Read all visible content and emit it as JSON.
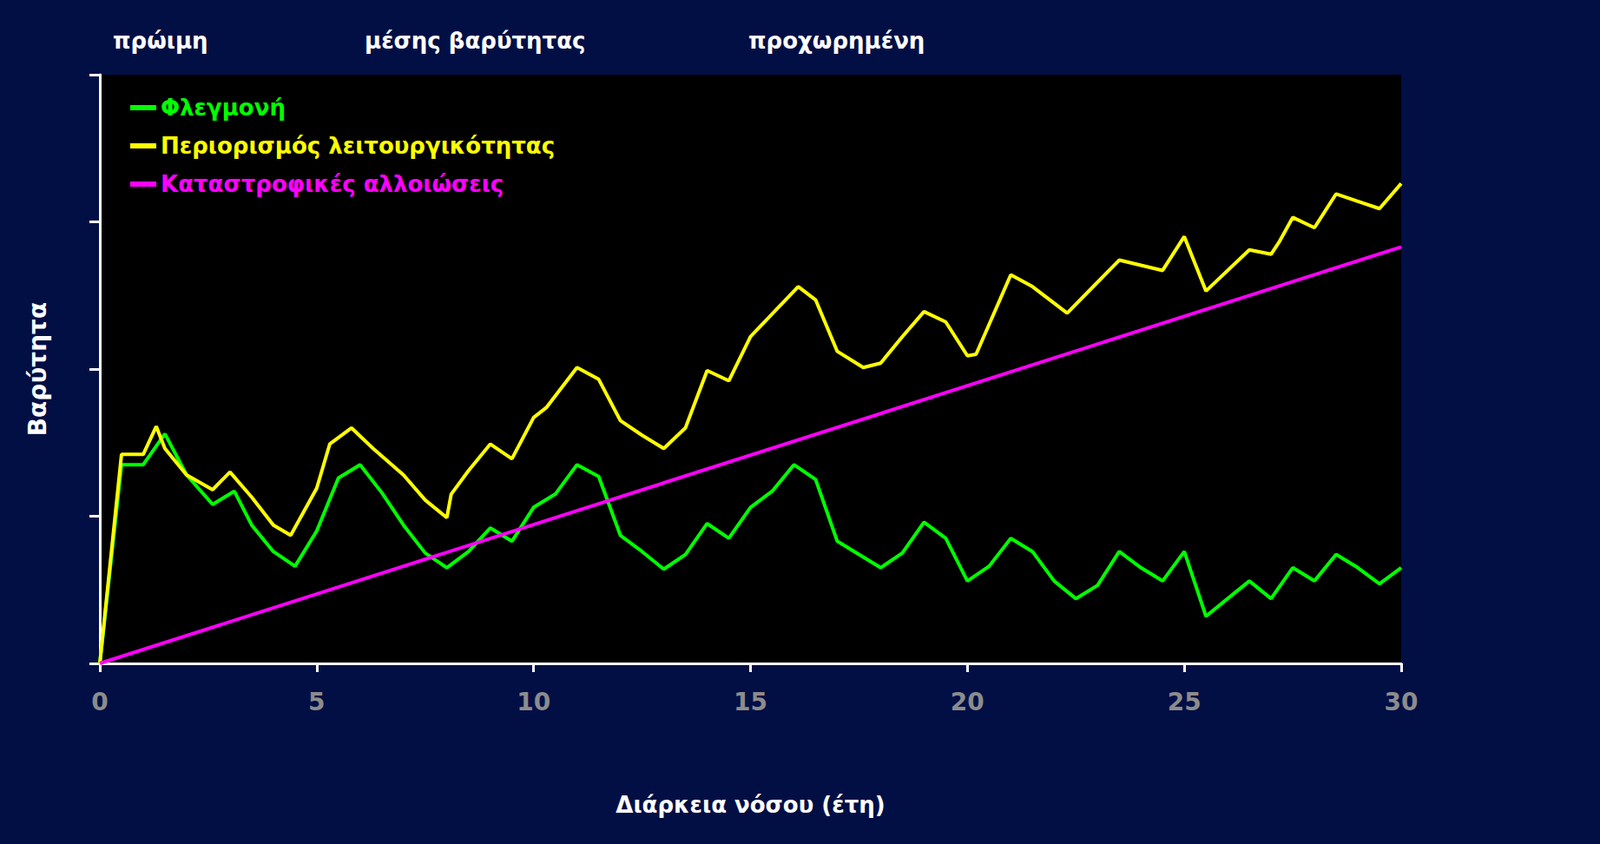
{
  "chart_data": {
    "type": "line",
    "annotations": [
      "πρώιμη",
      "μέσης βαρύτητας",
      "προχωρημένη"
    ],
    "x_label": "Διάρκεια νόσου (έτη)",
    "y_label": "Βαρύτητα",
    "xlim": [
      0,
      30
    ],
    "xticks": [
      0,
      5,
      10,
      15,
      20,
      25,
      30
    ],
    "ylim": [
      0,
      4
    ],
    "yticks": [
      0,
      1,
      2,
      3,
      4
    ],
    "tick_labels": "x",
    "grid": false,
    "legend": "upper left",
    "series": [
      {
        "name": "Φλεγμονή",
        "color": "#00ff00",
        "x": [
          0,
          0.5,
          1.0,
          1.5,
          2.0,
          2.6,
          3.1,
          3.5,
          4.0,
          4.5,
          5.0,
          5.5,
          6.0,
          6.5,
          7.0,
          7.5,
          8.0,
          8.5,
          9.0,
          9.5,
          10.0,
          10.5,
          11.0,
          11.5,
          12.0,
          12.5,
          13.0,
          13.5,
          14.0,
          14.5,
          15.0,
          15.5,
          16.0,
          16.5,
          17.0,
          17.5,
          18.0,
          18.5,
          19.0,
          19.5,
          20.0,
          20.5,
          21.0,
          21.5,
          22.0,
          22.5,
          23.0,
          23.5,
          24.0,
          24.5,
          25.0,
          25.5,
          26.0,
          26.5,
          27.0,
          27.5,
          28.0,
          28.5,
          29.0,
          29.5,
          30.0
        ],
        "values": [
          0,
          1.35,
          1.35,
          1.56,
          1.28,
          1.08,
          1.17,
          0.94,
          0.76,
          0.66,
          0.9,
          1.26,
          1.35,
          1.16,
          0.94,
          0.75,
          0.65,
          0.76,
          0.92,
          0.83,
          1.06,
          1.15,
          1.35,
          1.27,
          0.87,
          0.76,
          0.64,
          0.74,
          0.95,
          0.85,
          1.06,
          1.17,
          1.35,
          1.25,
          0.83,
          0.74,
          0.65,
          0.75,
          0.96,
          0.85,
          0.56,
          0.66,
          0.85,
          0.76,
          0.56,
          0.44,
          0.53,
          0.76,
          0.65,
          0.56,
          0.76,
          0.32,
          0.44,
          0.56,
          0.44,
          0.65,
          0.56,
          0.74,
          0.65,
          0.54,
          0.65
        ]
      },
      {
        "name": "Περιορισμός λειτουργικότητας",
        "color": "#ffff00",
        "x": [
          0,
          0.5,
          1.0,
          1.3,
          1.5,
          2.0,
          2.6,
          3.0,
          3.5,
          4.0,
          4.4,
          5.0,
          5.3,
          5.8,
          6.3,
          7.0,
          7.5,
          8.0,
          8.1,
          8.5,
          9.0,
          9.5,
          10.0,
          10.3,
          11.0,
          11.5,
          12.0,
          12.5,
          13.0,
          13.5,
          14.0,
          14.5,
          15.0,
          16.1,
          16.5,
          17.0,
          17.6,
          18.0,
          18.5,
          19.0,
          19.5,
          20.0,
          20.2,
          21.0,
          21.5,
          22.3,
          23.0,
          23.5,
          24.5,
          25.0,
          25.5,
          26.5,
          27.0,
          27.2,
          27.5,
          28.0,
          28.5,
          29.0,
          29.5,
          30.0
        ],
        "values": [
          0,
          1.42,
          1.42,
          1.61,
          1.46,
          1.28,
          1.18,
          1.3,
          1.13,
          0.94,
          0.87,
          1.19,
          1.49,
          1.6,
          1.46,
          1.28,
          1.11,
          0.99,
          1.15,
          1.31,
          1.49,
          1.39,
          1.67,
          1.74,
          2.01,
          1.93,
          1.65,
          1.55,
          1.46,
          1.6,
          1.99,
          1.92,
          2.22,
          2.56,
          2.47,
          2.12,
          2.01,
          2.04,
          2.22,
          2.39,
          2.32,
          2.09,
          2.1,
          2.64,
          2.56,
          2.38,
          2.59,
          2.74,
          2.67,
          2.9,
          2.53,
          2.81,
          2.78,
          2.87,
          3.03,
          2.96,
          3.19,
          3.14,
          3.09,
          3.26
        ]
      },
      {
        "name": "Καταστροφικές αλλοιώσεις",
        "color": "#ff00ff",
        "x": [
          0,
          30
        ],
        "values": [
          0,
          2.83
        ]
      }
    ]
  }
}
